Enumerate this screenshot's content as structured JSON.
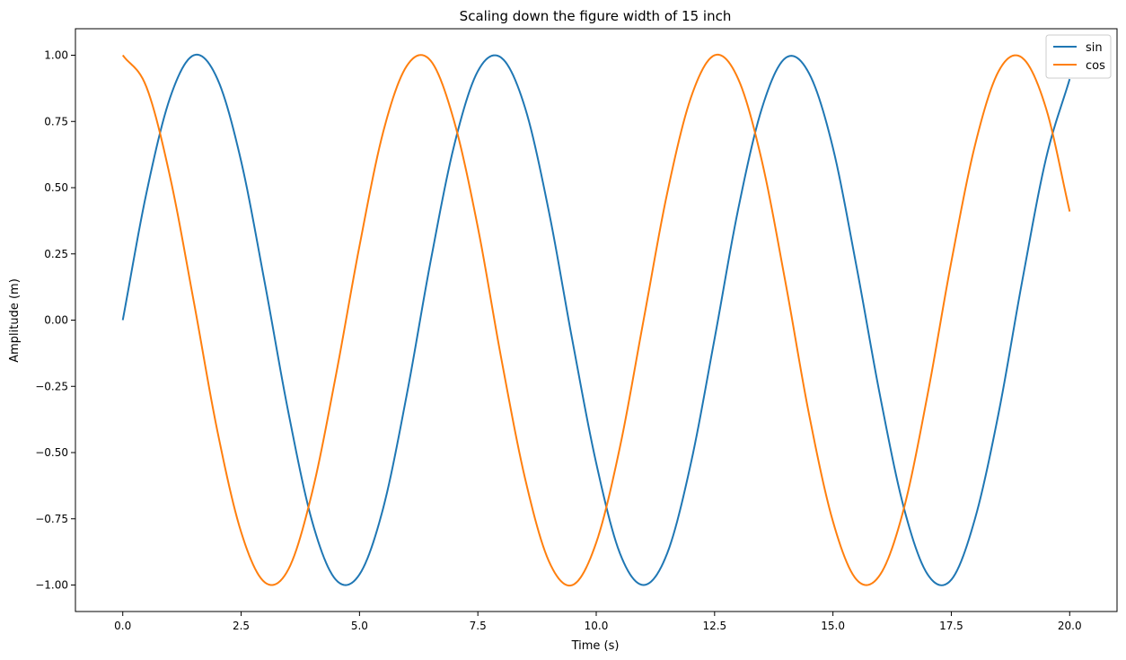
{
  "chart_data": {
    "type": "line",
    "title": "Scaling down the figure width of 15 inch",
    "xlabel": "Time (s)",
    "ylabel": "Amplitude (m)",
    "xlim": [
      -1.0,
      21.0
    ],
    "ylim": [
      -1.1,
      1.1
    ],
    "grid": false,
    "legend_position": "top-right",
    "x_ticks": [
      0.0,
      2.5,
      5.0,
      7.5,
      10.0,
      12.5,
      15.0,
      17.5,
      20.0
    ],
    "x_tick_labels": [
      "0.0",
      "2.5",
      "5.0",
      "7.5",
      "10.0",
      "12.5",
      "15.0",
      "17.5",
      "20.0"
    ],
    "y_ticks": [
      -1.0,
      -0.75,
      -0.5,
      -0.25,
      0.0,
      0.25,
      0.5,
      0.75,
      1.0
    ],
    "y_tick_labels": [
      "−1.00",
      "−0.75",
      "−0.50",
      "−0.25",
      "0.00",
      "0.25",
      "0.50",
      "0.75",
      "1.00"
    ],
    "x": [
      0,
      0.5,
      1,
      1.5,
      2,
      2.5,
      3,
      3.5,
      4,
      4.5,
      5,
      5.5,
      6,
      6.5,
      7,
      7.5,
      8,
      8.5,
      9,
      9.5,
      10,
      10.5,
      11,
      11.5,
      12,
      12.5,
      13,
      13.5,
      14,
      14.5,
      15,
      15.5,
      16,
      16.5,
      17,
      17.5,
      18,
      18.5,
      19,
      19.5,
      20
    ],
    "series": [
      {
        "name": "sin",
        "color": "#1f77b4",
        "values": [
          0.0,
          0.48,
          0.84,
          1.0,
          0.91,
          0.6,
          0.14,
          -0.35,
          -0.76,
          -0.98,
          -0.96,
          -0.71,
          -0.28,
          0.22,
          0.66,
          0.94,
          0.99,
          0.8,
          0.41,
          -0.08,
          -0.54,
          -0.88,
          -1.0,
          -0.88,
          -0.54,
          -0.07,
          0.42,
          0.8,
          0.99,
          0.93,
          0.65,
          0.2,
          -0.29,
          -0.71,
          -0.96,
          -0.98,
          -0.75,
          -0.35,
          0.15,
          0.61,
          0.91
        ]
      },
      {
        "name": "cos",
        "color": "#ff7f0e",
        "values": [
          1.0,
          0.88,
          0.54,
          0.07,
          -0.42,
          -0.8,
          -0.99,
          -0.94,
          -0.65,
          -0.21,
          0.28,
          0.71,
          0.96,
          0.98,
          0.75,
          0.35,
          -0.15,
          -0.6,
          -0.91,
          -1.0,
          -0.84,
          -0.48,
          0.0,
          0.48,
          0.84,
          1.0,
          0.91,
          0.6,
          0.14,
          -0.36,
          -0.76,
          -0.98,
          -0.96,
          -0.71,
          -0.28,
          0.22,
          0.66,
          0.94,
          0.99,
          0.8,
          0.41
        ]
      }
    ]
  }
}
